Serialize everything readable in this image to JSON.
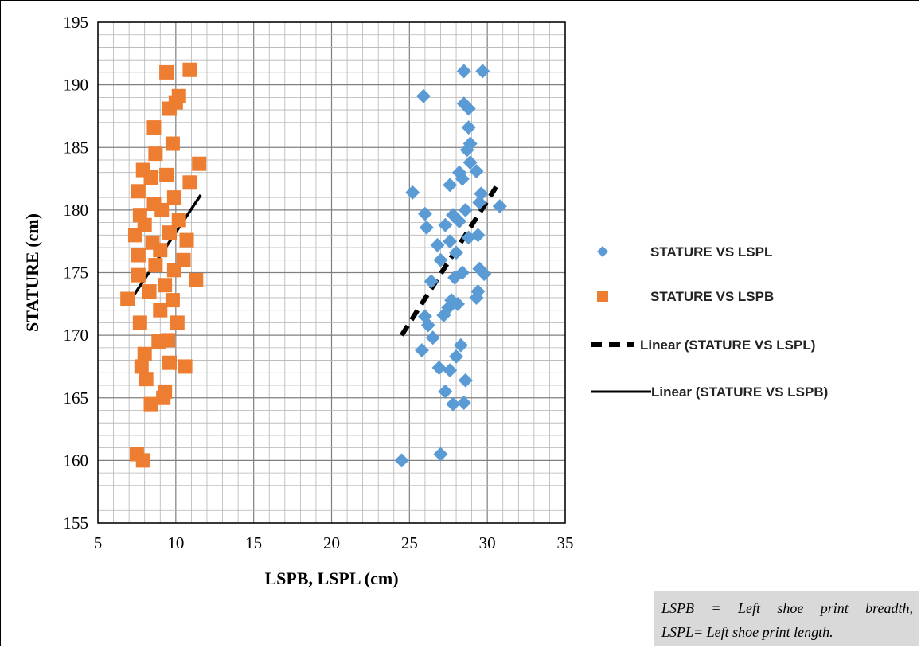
{
  "chart_data": {
    "type": "scatter",
    "title": "",
    "xlabel": "LSPB, LSPL (cm)",
    "ylabel": "STATURE (cm)",
    "xlim": [
      5,
      35
    ],
    "ylim": [
      155,
      195
    ],
    "x_ticks": [
      "5",
      "10",
      "15",
      "20",
      "25",
      "30",
      "35"
    ],
    "y_ticks": [
      "155",
      "160",
      "165",
      "170",
      "175",
      "180",
      "185",
      "190",
      "195"
    ],
    "grid": "major and minor",
    "legend_position": "right",
    "colors": {
      "lspl": "#5b9bd5",
      "lspb": "#ed7d31",
      "trend": "#000000"
    },
    "series": [
      {
        "name": "STATURE VS LSPL",
        "marker": "diamond",
        "points": [
          [
            24.5,
            160
          ],
          [
            27.0,
            160.5
          ],
          [
            27.8,
            164.5
          ],
          [
            28.5,
            164.6
          ],
          [
            27.3,
            165.5
          ],
          [
            28.6,
            166.4
          ],
          [
            26.9,
            167.4
          ],
          [
            27.6,
            167.2
          ],
          [
            28.0,
            168.3
          ],
          [
            28.3,
            169.2
          ],
          [
            25.8,
            168.8
          ],
          [
            26.5,
            169.8
          ],
          [
            26.2,
            170.8
          ],
          [
            26.0,
            171.5
          ],
          [
            27.2,
            171.6
          ],
          [
            27.5,
            172.2
          ],
          [
            28.1,
            172.5
          ],
          [
            29.3,
            173.0
          ],
          [
            29.4,
            173.5
          ],
          [
            27.7,
            172.8
          ],
          [
            26.4,
            174.3
          ],
          [
            27.9,
            174.6
          ],
          [
            28.4,
            175.0
          ],
          [
            29.5,
            175.3
          ],
          [
            29.8,
            174.9
          ],
          [
            27.0,
            176.0
          ],
          [
            28.0,
            176.6
          ],
          [
            26.8,
            177.2
          ],
          [
            27.6,
            177.5
          ],
          [
            28.8,
            177.8
          ],
          [
            29.4,
            178.0
          ],
          [
            26.1,
            178.6
          ],
          [
            27.3,
            178.8
          ],
          [
            28.2,
            179.1
          ],
          [
            27.8,
            179.6
          ],
          [
            26.0,
            179.7
          ],
          [
            28.6,
            180.0
          ],
          [
            29.5,
            180.6
          ],
          [
            30.8,
            180.3
          ],
          [
            25.2,
            181.4
          ],
          [
            29.6,
            181.3
          ],
          [
            27.6,
            182.0
          ],
          [
            28.4,
            182.5
          ],
          [
            28.2,
            183.0
          ],
          [
            29.3,
            183.1
          ],
          [
            28.9,
            183.8
          ],
          [
            28.7,
            184.8
          ],
          [
            28.9,
            185.3
          ],
          [
            28.8,
            186.6
          ],
          [
            28.8,
            188.1
          ],
          [
            28.5,
            188.5
          ],
          [
            25.9,
            189.1
          ],
          [
            28.5,
            191.1
          ],
          [
            29.7,
            191.1
          ]
        ]
      },
      {
        "name": "STATURE VS LSPB",
        "marker": "square",
        "points": [
          [
            7.5,
            160.5
          ],
          [
            7.9,
            160.0
          ],
          [
            8.4,
            164.5
          ],
          [
            9.2,
            165.0
          ],
          [
            9.3,
            165.5
          ],
          [
            8.1,
            166.5
          ],
          [
            7.8,
            167.5
          ],
          [
            9.6,
            167.8
          ],
          [
            10.6,
            167.5
          ],
          [
            8.0,
            168.5
          ],
          [
            8.9,
            169.5
          ],
          [
            9.5,
            169.6
          ],
          [
            7.7,
            171.0
          ],
          [
            10.1,
            171.0
          ],
          [
            9.0,
            172.0
          ],
          [
            9.8,
            172.8
          ],
          [
            6.9,
            172.9
          ],
          [
            8.3,
            173.5
          ],
          [
            9.3,
            174.0
          ],
          [
            11.3,
            174.4
          ],
          [
            7.6,
            174.8
          ],
          [
            9.9,
            175.2
          ],
          [
            8.7,
            175.6
          ],
          [
            10.5,
            176.0
          ],
          [
            7.6,
            176.4
          ],
          [
            9.0,
            176.8
          ],
          [
            10.7,
            177.6
          ],
          [
            8.5,
            177.4
          ],
          [
            7.4,
            178.0
          ],
          [
            9.6,
            178.2
          ],
          [
            8.0,
            178.8
          ],
          [
            10.2,
            179.2
          ],
          [
            7.7,
            179.6
          ],
          [
            9.1,
            180.0
          ],
          [
            8.6,
            180.5
          ],
          [
            9.9,
            181.0
          ],
          [
            7.6,
            181.5
          ],
          [
            10.9,
            182.2
          ],
          [
            8.4,
            182.6
          ],
          [
            9.4,
            182.8
          ],
          [
            7.9,
            183.2
          ],
          [
            11.5,
            183.7
          ],
          [
            8.7,
            184.5
          ],
          [
            9.8,
            185.3
          ],
          [
            8.6,
            186.6
          ],
          [
            9.6,
            188.1
          ],
          [
            10.0,
            188.6
          ],
          [
            10.2,
            189.1
          ],
          [
            9.4,
            191.0
          ],
          [
            10.9,
            191.2
          ]
        ]
      },
      {
        "name": "Linear  (STATURE VS LSPL)",
        "style": "dashed",
        "line": [
          [
            24.5,
            170.0
          ],
          [
            30.8,
            182.3
          ]
        ]
      },
      {
        "name": "Linear  (STATURE VS LSPB)",
        "style": "solid",
        "line": [
          [
            7.2,
            173.0
          ],
          [
            11.6,
            181.2
          ]
        ]
      }
    ],
    "legend": [
      "STATURE VS LSPL",
      "STATURE VS LSPB",
      "Linear  (STATURE VS LSPL)",
      "Linear  (STATURE VS LSPB)"
    ]
  },
  "note": {
    "line1": "LSPB = Left shoe print breadth,",
    "line2": "LSPL= Left shoe print length."
  }
}
